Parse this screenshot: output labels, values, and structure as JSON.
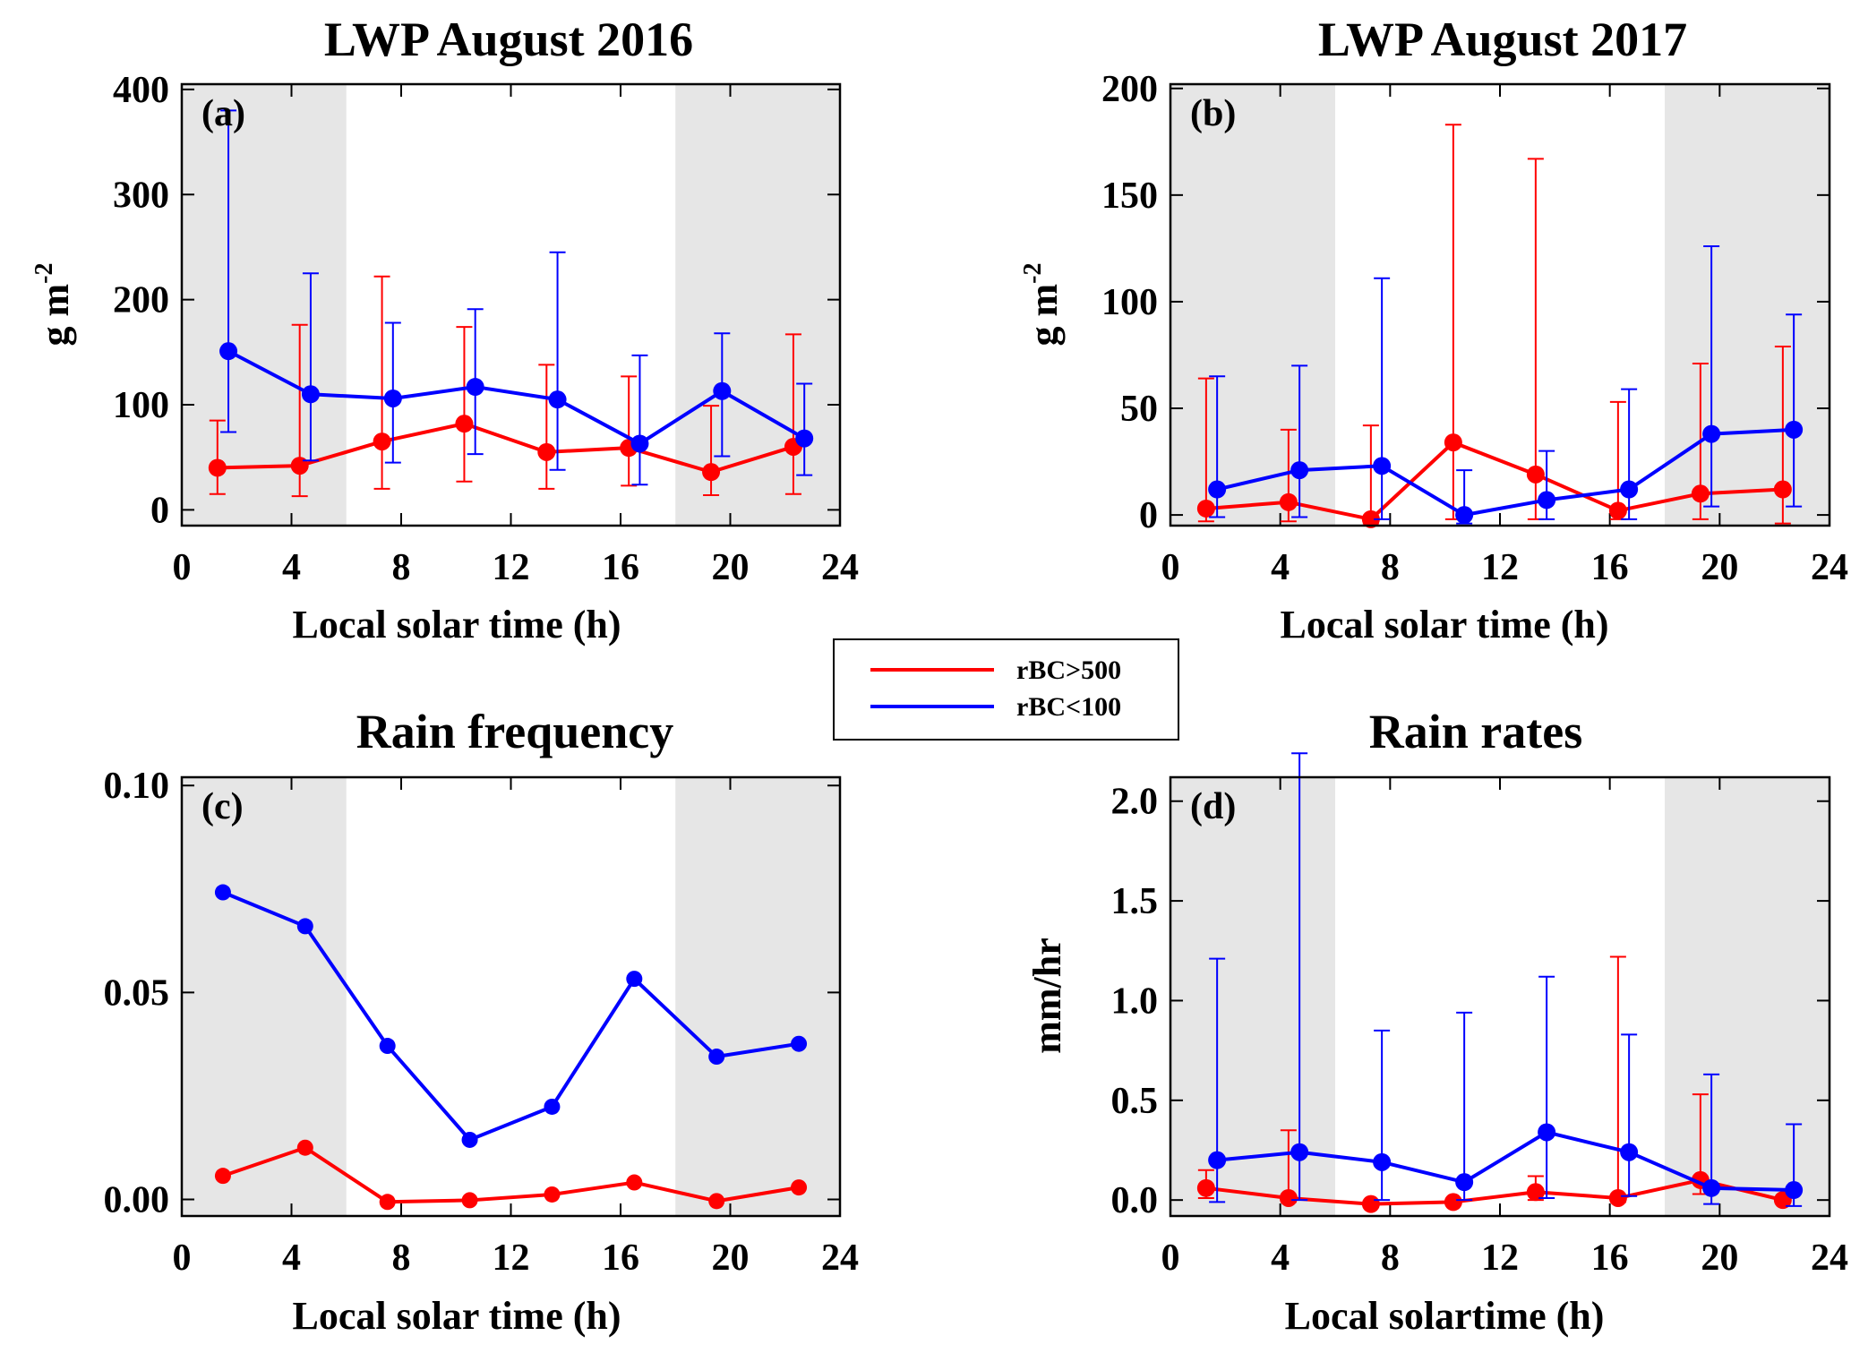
{
  "chart_data": [
    {
      "id": "a",
      "type": "line",
      "panel_label": "(a)",
      "title": "LWP August 2016",
      "xlabel": "Local solar time (h)",
      "ylabel": "g m",
      "ylabel_sup": "-2",
      "xlim": [
        0,
        24
      ],
      "ylim": [
        -15,
        405
      ],
      "xticks": [
        "0",
        "4",
        "8",
        "12",
        "16",
        "20",
        "24"
      ],
      "yticks": [
        "0",
        "100",
        "200",
        "300",
        "400"
      ],
      "shaded": [
        [
          0,
          6
        ],
        [
          18,
          24
        ]
      ],
      "series": [
        {
          "name": "rBC>500",
          "color": "#ff0000",
          "x": [
            1.3,
            4.3,
            7.3,
            10.3,
            13.3,
            16.3,
            19.3,
            22.3
          ],
          "y": [
            40,
            42,
            65,
            82,
            55,
            59,
            36,
            60
          ],
          "err_low": [
            15,
            13,
            20,
            27,
            20,
            23,
            14,
            15
          ],
          "err_high": [
            85,
            176,
            222,
            174,
            138,
            127,
            99,
            167
          ]
        },
        {
          "name": "rBC<100",
          "color": "#0000ff",
          "x": [
            1.7,
            4.7,
            7.7,
            10.7,
            13.7,
            16.7,
            19.7,
            22.7
          ],
          "y": [
            151,
            110,
            106,
            117,
            105,
            63,
            113,
            68
          ],
          "err_low": [
            74,
            47,
            45,
            53,
            38,
            24,
            51,
            33
          ],
          "err_high": [
            380,
            225,
            178,
            191,
            245,
            147,
            168,
            120
          ]
        }
      ]
    },
    {
      "id": "b",
      "type": "line",
      "panel_label": "(b)",
      "title": "LWP August 2017",
      "xlabel": "Local solar time (h)",
      "ylabel": "g m",
      "ylabel_sup": "-2",
      "xlim": [
        0,
        24
      ],
      "ylim": [
        -5,
        202
      ],
      "xticks": [
        "0",
        "4",
        "8",
        "12",
        "16",
        "20",
        "24"
      ],
      "yticks": [
        "0",
        "50",
        "100",
        "150",
        "200"
      ],
      "shaded": [
        [
          0,
          6
        ],
        [
          18,
          24
        ]
      ],
      "series": [
        {
          "name": "rBC>500",
          "color": "#ff0000",
          "x": [
            1.3,
            4.3,
            7.3,
            10.3,
            13.3,
            16.3,
            19.3,
            22.3
          ],
          "y": [
            3,
            6,
            -2,
            34,
            19,
            2,
            10,
            12
          ],
          "err_low": [
            -3,
            -3,
            -4,
            -2,
            -2,
            -2,
            -2,
            -4
          ],
          "err_high": [
            64,
            40,
            42,
            183,
            167,
            53,
            71,
            79
          ]
        },
        {
          "name": "rBC<100",
          "color": "#0000ff",
          "x": [
            1.7,
            4.7,
            7.7,
            10.7,
            13.7,
            16.7,
            19.7,
            22.7
          ],
          "y": [
            12,
            21,
            23,
            0,
            7,
            12,
            38,
            40
          ],
          "err_low": [
            -1,
            -1,
            -2,
            -4,
            -2,
            -2,
            4,
            4
          ],
          "err_high": [
            65,
            70,
            111,
            21,
            30,
            59,
            126,
            94
          ]
        }
      ]
    },
    {
      "id": "c",
      "type": "line",
      "panel_label": "(c)",
      "title": "Rain frequency",
      "xlabel": "Local solar time (h)",
      "ylabel": "",
      "ylabel_sup": "",
      "xlim": [
        0,
        24
      ],
      "ylim": [
        -0.004,
        0.102
      ],
      "xticks": [
        "0",
        "4",
        "8",
        "12",
        "16",
        "20",
        "24"
      ],
      "yticks": [
        "0.00",
        "0.05",
        "0.10"
      ],
      "shaded": [
        [
          0,
          6
        ],
        [
          18,
          24
        ]
      ],
      "series": [
        {
          "name": "rBC>500",
          "color": "#ff0000",
          "x": [
            1.5,
            4.5,
            7.5,
            10.5,
            13.5,
            16.5,
            19.5,
            22.5
          ],
          "y": [
            0.0057,
            0.0125,
            -0.0006,
            -0.0002,
            0.0012,
            0.0041,
            -0.0004,
            0.0029
          ]
        },
        {
          "name": "rBC<100",
          "color": "#0000ff",
          "x": [
            1.5,
            4.5,
            7.5,
            10.5,
            13.5,
            16.5,
            19.5,
            22.5
          ],
          "y": [
            0.0742,
            0.066,
            0.0371,
            0.0144,
            0.0224,
            0.0533,
            0.0345,
            0.0376
          ]
        }
      ]
    },
    {
      "id": "d",
      "type": "line",
      "panel_label": "(d)",
      "title": "Rain rates",
      "xlabel": "Local solartime (h)",
      "ylabel": "mm/hr",
      "ylabel_sup": "",
      "xlim": [
        0,
        24
      ],
      "ylim": [
        -0.08,
        2.12
      ],
      "xticks": [
        "0",
        "4",
        "8",
        "12",
        "16",
        "20",
        "24"
      ],
      "yticks": [
        "0.0",
        "0.5",
        "1.0",
        "1.5",
        "2.0"
      ],
      "shaded": [
        [
          0,
          6
        ],
        [
          18,
          24
        ]
      ],
      "series": [
        {
          "name": "rBC>500",
          "color": "#ff0000",
          "x": [
            1.3,
            4.3,
            7.3,
            10.3,
            13.3,
            16.3,
            19.3,
            22.3
          ],
          "y": [
            0.06,
            0.01,
            -0.02,
            -0.01,
            0.04,
            0.01,
            0.1,
            0.0
          ],
          "err_low": [
            0.01,
            -0.01,
            -0.03,
            -0.02,
            0.0,
            -0.01,
            0.03,
            -0.01
          ],
          "err_high": [
            0.15,
            0.35,
            -0.01,
            0.0,
            0.12,
            1.22,
            0.53,
            0.01
          ]
        },
        {
          "name": "rBC<100",
          "color": "#0000ff",
          "x": [
            1.7,
            4.7,
            7.7,
            10.7,
            13.7,
            16.7,
            19.7,
            22.7
          ],
          "y": [
            0.2,
            0.24,
            0.19,
            0.09,
            0.34,
            0.24,
            0.06,
            0.05
          ],
          "err_low": [
            -0.01,
            0.0,
            0.0,
            0.0,
            0.01,
            0.02,
            -0.02,
            -0.03
          ],
          "err_high": [
            1.21,
            2.24,
            0.85,
            0.94,
            1.12,
            0.83,
            0.63,
            0.38
          ]
        }
      ]
    }
  ],
  "legend": {
    "entries": [
      {
        "label": "rBC>500",
        "color": "#ff0000"
      },
      {
        "label": "rBC<100",
        "color": "#0000ff"
      }
    ]
  }
}
